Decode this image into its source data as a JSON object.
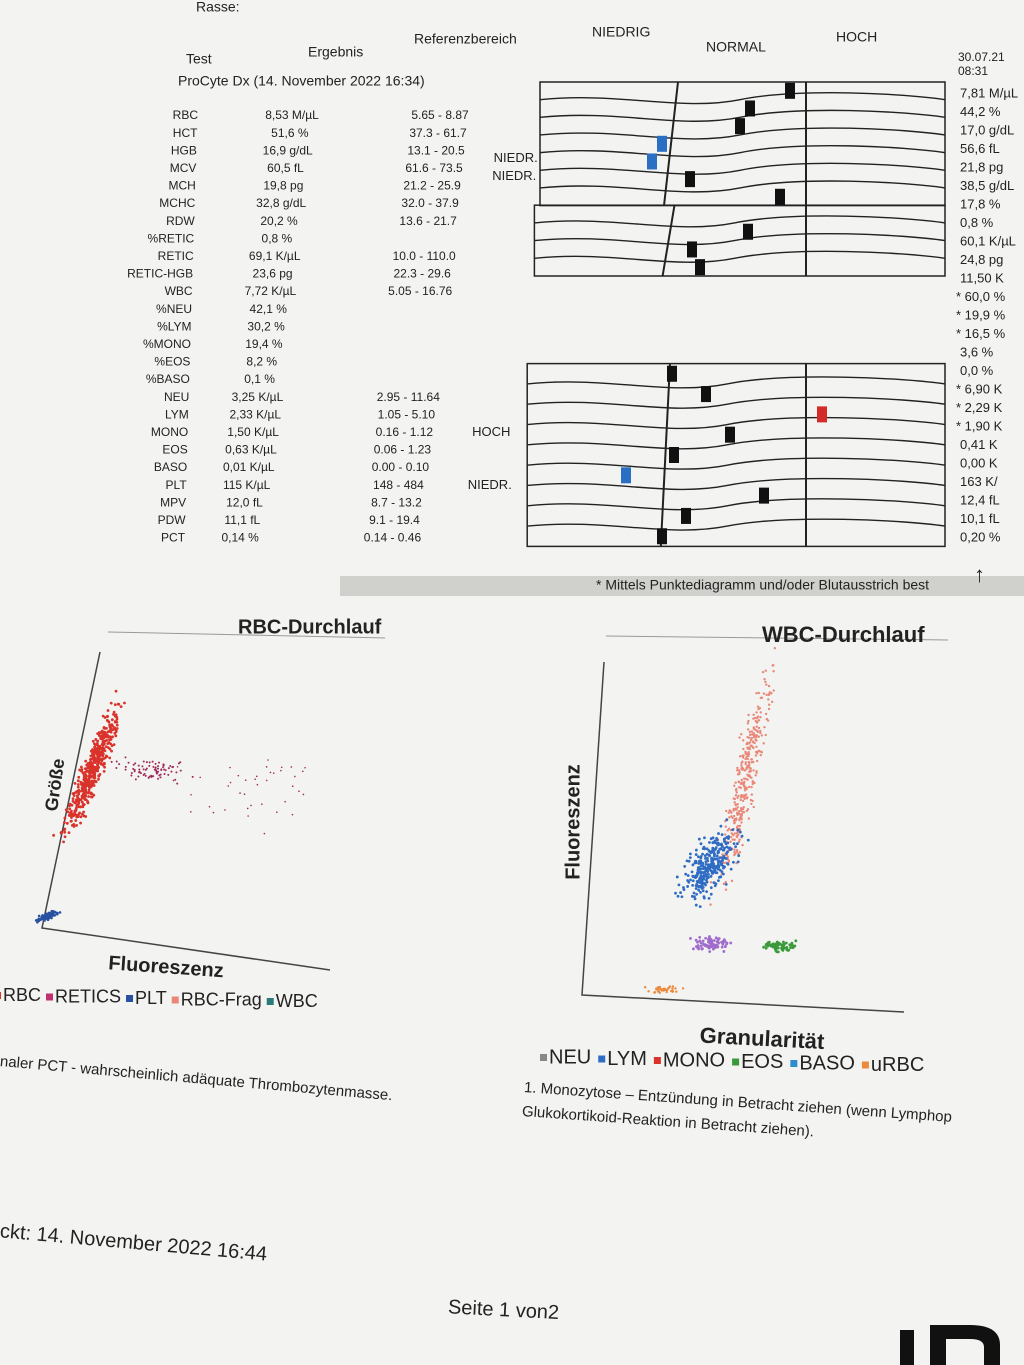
{
  "header": {
    "rasse": "Rasse:",
    "col_test": "Test",
    "col_result": "Ergebnis",
    "col_range": "Referenzbereich",
    "col_low": "NIEDRIG",
    "col_normal": "NORMAL",
    "col_high": "HOCH",
    "instrument": "ProCyte Dx (14. November 2022 16:34)",
    "previous_date": "30.07.21",
    "previous_time": "08:31"
  },
  "table": {
    "rows": [
      {
        "test": "RBC",
        "result": "8,53 M/µL",
        "range": "5.65 - 8.87",
        "previous": "7,81 M/µL"
      },
      {
        "test": "HCT",
        "result": "51,6 %",
        "range": "37.3 - 61.7",
        "previous": "44,2 %"
      },
      {
        "test": "HGB",
        "result": "16,9 g/dL",
        "range": "13.1 - 20.5",
        "previous": "17,0 g/dL"
      },
      {
        "test": "MCV",
        "result": "60,5 fL",
        "range": "61.6 - 73.5",
        "flag": "NIEDR.",
        "color": "#2a6fc4",
        "previous": "56,6 fL",
        "previous_color": "#2a6fc4"
      },
      {
        "test": "MCH",
        "result": "19,8 pg",
        "range": "21.2 - 25.9",
        "flag": "NIEDR.",
        "color": "#2a6fc4",
        "previous": "21,8 pg"
      },
      {
        "test": "MCHC",
        "result": "32,8 g/dL",
        "range": "32.0 - 37.9",
        "previous": "38,5 g/dL",
        "previous_color": "#c8262b"
      },
      {
        "test": "RDW",
        "result": "20,2 %",
        "range": "13.6 - 21.7",
        "previous": "17,8 %"
      },
      {
        "test": "%RETIC",
        "result": "0,8 %",
        "previous": "0,8 %"
      },
      {
        "test": "RETIC",
        "result": "69,1 K/µL",
        "range": "10.0 - 110.0",
        "previous": "60,1 K/µL"
      },
      {
        "test": "RETIC-HGB",
        "result": "23,6 pg",
        "range": "22.3 - 29.6",
        "previous": "24,8 pg"
      },
      {
        "test": "WBC",
        "result": "7,72 K/µL",
        "range": "5.05 - 16.76",
        "previous": "11,50 K"
      },
      {
        "test": "%NEU",
        "result": "42,1 %",
        "previous": "* 60,0 %"
      },
      {
        "test": "%LYM",
        "result": "30,2 %",
        "previous": "* 19,9 %"
      },
      {
        "test": "%MONO",
        "result": "19,4 %",
        "previous": "* 16,5 %"
      },
      {
        "test": "%EOS",
        "result": "8,2 %",
        "previous": "3,6 %"
      },
      {
        "test": "%BASO",
        "result": "0,1 %",
        "previous": "0,0 %"
      },
      {
        "test": "NEU",
        "result": "3,25 K/µL",
        "range": "2.95 - 11.64",
        "previous": "* 6,90 K"
      },
      {
        "test": "LYM",
        "result": "2,33 K/µL",
        "range": "1.05 - 5.10",
        "previous": "* 2,29 K"
      },
      {
        "test": "MONO",
        "result": "1,50 K/µL",
        "range": "0.16 - 1.12",
        "flag": "HOCH",
        "color": "#c8262b",
        "previous": "* 1,90 K",
        "previous_color": "#c8262b"
      },
      {
        "test": "EOS",
        "result": "0,63 K/µL",
        "range": "0.06 - 1.23",
        "previous": "0,41 K"
      },
      {
        "test": "BASO",
        "result": "0,01 K/µL",
        "range": "0.00 - 0.10",
        "previous": "0,00 K"
      },
      {
        "test": "PLT",
        "result": "115 K/µL",
        "range": "148 - 484",
        "flag": "NIEDR.",
        "color": "#2a6fc4",
        "previous": "163 K/"
      },
      {
        "test": "MPV",
        "result": "12,0 fL",
        "range": "8.7 - 13.2",
        "previous": "12,4 fL"
      },
      {
        "test": "PDW",
        "result": "11,1 fL",
        "range": "9.1 - 19.4",
        "previous": "10,1 fL"
      },
      {
        "test": "PCT",
        "result": "0,14 %",
        "range": "0.14 - 0.46",
        "previous": "0,20 %"
      }
    ]
  },
  "footnote": "* Mittels Punktediagramm und/oder Blutausstrich best",
  "rbc_plot": {
    "title": "RBC-Durchlauf",
    "y_label": "Größe",
    "x_label": "Fluoreszenz",
    "legend": [
      "RBC",
      "RETICS",
      "PLT",
      "RBC-Frag",
      "WBC"
    ]
  },
  "wbc_plot": {
    "title": "WBC-Durchlauf",
    "y_label": "Fluoreszenz",
    "x_label": "Granularität",
    "legend": [
      "NEU",
      "LYM",
      "MONO",
      "EOS",
      "BASO",
      "uRBC"
    ]
  },
  "notes": [
    "naler PCT - wahrscheinlich adäquate Thrombozytenmasse.",
    "1. Monozytose – Entzündung in Betracht ziehen (wenn Lymphop",
    "Glukokortikoid-Reaktion in Betracht ziehen)."
  ],
  "printed": "ckt: 14. November 2022 16:44",
  "page": "Seite 1 von2"
}
